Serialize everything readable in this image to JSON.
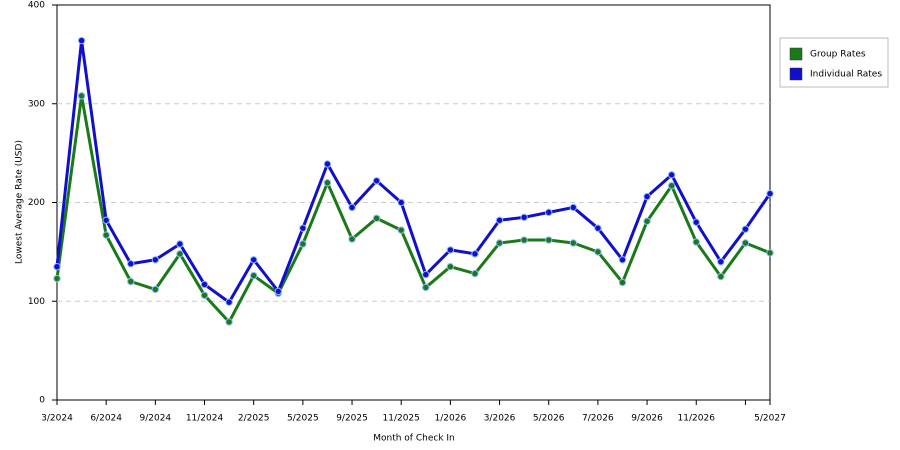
{
  "chart_data": {
    "type": "line",
    "x_label": "Month of Check In",
    "y_label": "Lowest Average Rate (USD)",
    "categories": [
      "3/2024",
      null,
      "6/2024",
      null,
      "9/2024",
      null,
      "11/2024",
      null,
      "2/2025",
      null,
      "5/2025",
      null,
      "9/2025",
      null,
      "11/2025",
      null,
      "1/2026",
      null,
      "3/2026",
      null,
      "5/2026",
      null,
      "7/2026",
      null,
      "9/2026",
      null,
      "11/2026",
      null,
      null,
      "5/2027"
    ],
    "series": [
      {
        "name": "Group Rates",
        "color": "#1a7a1a",
        "values": [
          123,
          308,
          167,
          120,
          112,
          148,
          106,
          79,
          126,
          108,
          158,
          220,
          163,
          184,
          172,
          114,
          135,
          128,
          159,
          162,
          162,
          159,
          150,
          119,
          181,
          217,
          160,
          125,
          159,
          149
        ]
      },
      {
        "name": "Individual Rates",
        "color": "#1010cc",
        "values": [
          135,
          364,
          182,
          138,
          142,
          158,
          117,
          99,
          142,
          110,
          174,
          239,
          195,
          222,
          200,
          127,
          152,
          148,
          182,
          185,
          190,
          195,
          174,
          142,
          206,
          228,
          180,
          140,
          173,
          209
        ]
      }
    ],
    "ylim": [
      0,
      400
    ],
    "yticks": [
      0,
      100,
      200,
      300,
      400
    ],
    "grid": true,
    "legend": "right"
  }
}
